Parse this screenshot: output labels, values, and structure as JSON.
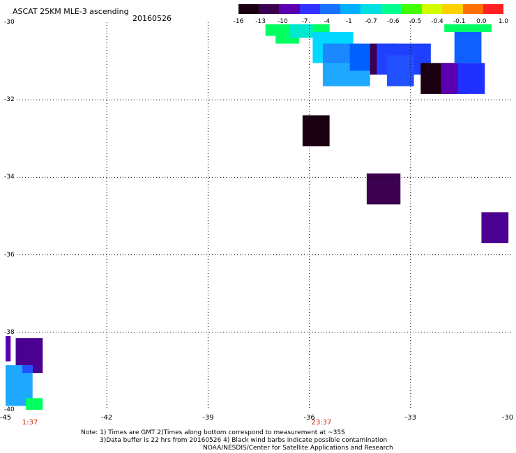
{
  "title": "ASCAT 25KM MLE-3 ascending",
  "date": "20160526",
  "colorbar": {
    "labels": [
      "-16",
      "-13",
      "-10",
      "-7",
      "-4",
      "-1",
      "-0.7",
      "-0.6",
      "-0.5",
      "-0.4",
      "-0.1",
      "0.0",
      "1.0"
    ],
    "colors": [
      "#1a0010",
      "#3b0050",
      "#5a00b0",
      "#3030ff",
      "#1a70ff",
      "#00b0ff",
      "#00e0e0",
      "#00ff90",
      "#40ff00",
      "#d0ff00",
      "#ffd000",
      "#ff7000",
      "#ff2020"
    ]
  },
  "axes": {
    "x_ticks": [
      "-45",
      "-42",
      "-39",
      "-36",
      "-33",
      "-30"
    ],
    "y_ticks": [
      "-30",
      "-32",
      "-34",
      "-36",
      "-38",
      "-40"
    ],
    "lon_range": [
      -45,
      -30
    ],
    "lat_range": [
      -40,
      -30
    ],
    "grid": true
  },
  "times": [
    "1:37",
    "23:37"
  ],
  "notes": [
    "Note: 1) Times are GMT 2)Times along bottom correspond to measurement at ~35S",
    "3)Data buffer is 22 hrs from 20160526 4) Black wind barbs indicate possible contamination",
    "NOAA/NESDIS/Center for Satellite Applications and Research"
  ],
  "cells": [
    {
      "lon0": -37.3,
      "lon1": -36.1,
      "lat0": -30.35,
      "lat1": -30.05,
      "color": "#00ff60"
    },
    {
      "lon0": -37.0,
      "lon1": -36.3,
      "lat0": -30.55,
      "lat1": -30.35,
      "color": "#00ff60"
    },
    {
      "lon0": -36.6,
      "lon1": -35.8,
      "lat0": -30.4,
      "lat1": -30.05,
      "color": "#00e8d0"
    },
    {
      "lon0": -35.9,
      "lon1": -35.4,
      "lat0": -30.4,
      "lat1": -30.05,
      "color": "#00ff60"
    },
    {
      "lon0": -35.9,
      "lon1": -34.7,
      "lat0": -31.05,
      "lat1": -30.25,
      "color": "#00d8ff"
    },
    {
      "lon0": -35.6,
      "lon1": -34.4,
      "lat0": -31.35,
      "lat1": -30.55,
      "color": "#1a88ff"
    },
    {
      "lon0": -35.6,
      "lon1": -34.2,
      "lat0": -31.65,
      "lat1": -31.05,
      "color": "#1ea8ff"
    },
    {
      "lon0": -34.8,
      "lon1": -33.5,
      "lat0": -31.25,
      "lat1": -30.55,
      "color": "#0060ff"
    },
    {
      "lon0": -34.2,
      "lon1": -33.4,
      "lat0": -31.35,
      "lat1": -30.55,
      "color": "#3b0050"
    },
    {
      "lon0": -34.0,
      "lon1": -32.4,
      "lat0": -31.35,
      "lat1": -30.55,
      "color": "#2040ff"
    },
    {
      "lon0": -33.7,
      "lon1": -32.9,
      "lat0": -31.65,
      "lat1": -30.85,
      "color": "#2050ff"
    },
    {
      "lon0": -32.7,
      "lon1": -31.7,
      "lat0": -31.85,
      "lat1": -31.05,
      "color": "#1a0010"
    },
    {
      "lon0": -32.1,
      "lon1": -31.3,
      "lat0": -31.85,
      "lat1": -31.05,
      "color": "#5a00b0"
    },
    {
      "lon0": -31.6,
      "lon1": -30.8,
      "lat0": -31.85,
      "lat1": -31.05,
      "color": "#2030ff"
    },
    {
      "lon0": -32.0,
      "lon1": -30.6,
      "lat0": -30.25,
      "lat1": -30.05,
      "color": "#00ff60"
    },
    {
      "lon0": -31.7,
      "lon1": -30.9,
      "lat0": -31.05,
      "lat1": -30.25,
      "color": "#1060ff"
    },
    {
      "lon0": -36.2,
      "lon1": -35.4,
      "lat0": -33.2,
      "lat1": -32.4,
      "color": "#1a0010"
    },
    {
      "lon0": -34.3,
      "lon1": -33.3,
      "lat0": -34.7,
      "lat1": -33.9,
      "color": "#3b0050"
    },
    {
      "lon0": -30.9,
      "lon1": -30.1,
      "lat0": -35.7,
      "lat1": -34.9,
      "color": "#4a0090"
    },
    {
      "lon0": -45.0,
      "lon1": -44.85,
      "lat0": -38.75,
      "lat1": -37.95,
      "color": "#5a00b0"
    },
    {
      "lon0": -44.7,
      "lon1": -43.9,
      "lat0": -39.05,
      "lat1": -38.15,
      "color": "#4a0090"
    },
    {
      "lon0": -45.0,
      "lon1": -44.2,
      "lat0": -39.9,
      "lat1": -38.85,
      "color": "#1ea8ff"
    },
    {
      "lon0": -44.5,
      "lon1": -44.2,
      "lat0": -39.05,
      "lat1": -38.85,
      "color": "#2050ff"
    },
    {
      "lon0": -44.4,
      "lon1": -43.9,
      "lat0": -40.05,
      "lat1": -39.7,
      "color": "#00ff60"
    }
  ]
}
